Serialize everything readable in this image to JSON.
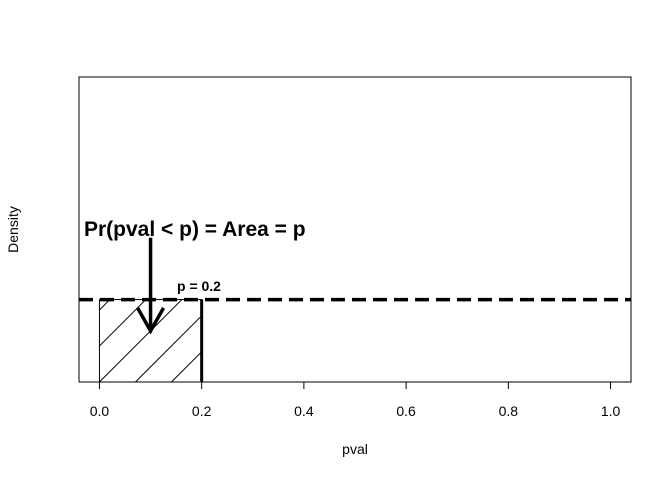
{
  "chart_data": {
    "type": "area",
    "xlabel": "pval",
    "ylabel": "Density",
    "xlim": [
      -0.04,
      1.04
    ],
    "ylim": [
      0,
      3.7
    ],
    "x_ticks": [
      0.0,
      0.2,
      0.4,
      0.6,
      0.8,
      1.0
    ],
    "x_tick_labels": [
      "0.0",
      "0.2",
      "0.4",
      "0.6",
      "0.8",
      "1.0"
    ],
    "y_ticks_shown": false,
    "grid": false,
    "density_line": {
      "y": 1,
      "x_start": -0.04,
      "x_end": 1.04,
      "style": "dashed"
    },
    "shaded_region": {
      "x_start": 0,
      "x_end": 0.2,
      "y_top": 1,
      "fill": "hatched"
    },
    "cutoff_line": {
      "x": 0.2,
      "y_top": 1
    },
    "annotations": {
      "area_label": "Pr(pval < p) = Area = p",
      "p_label": "p = 0.2"
    },
    "arrow": {
      "x": 0.1,
      "y_from": 1.75,
      "y_to": 0.62
    }
  }
}
